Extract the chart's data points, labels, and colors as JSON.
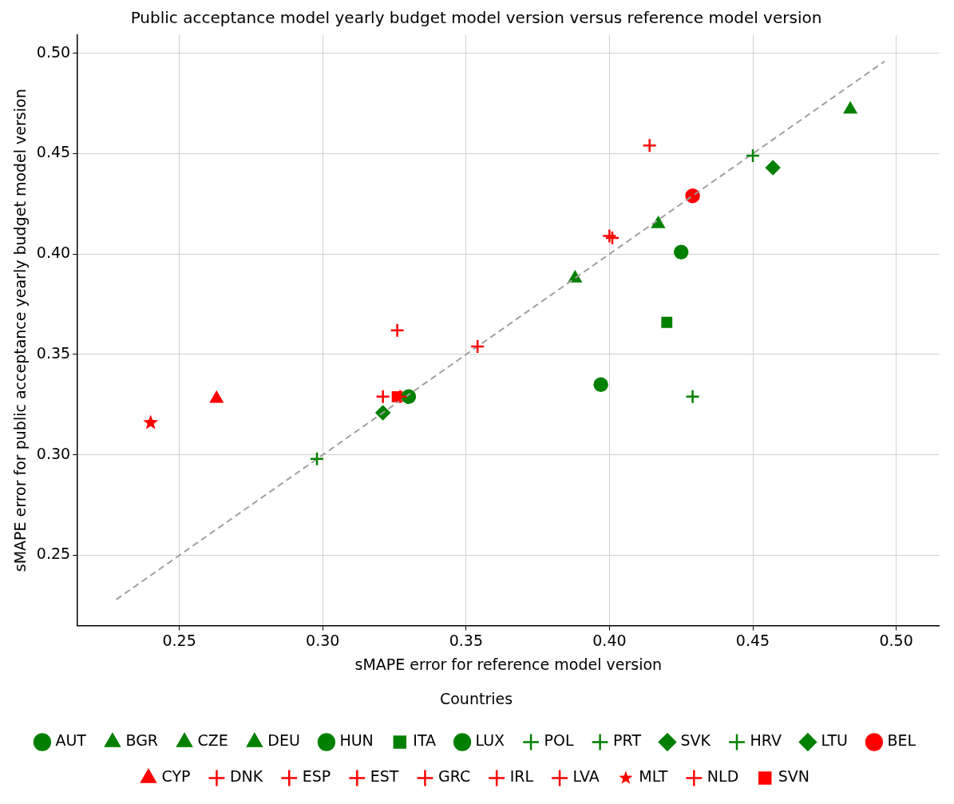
{
  "chart_data": {
    "type": "scatter",
    "title": "Public acceptance model yearly budget model version versus reference model version",
    "xlabel": "sMAPE error for reference model version",
    "ylabel": "sMAPE error for public acceptance yearly budget model version",
    "legend_title": "Countries",
    "legend": "bottom",
    "grid": true,
    "xlim": [
      0.2145,
      0.515
    ],
    "xticks": [
      0.25,
      {
        "value": 0.3,
        "label": "0.30"
      },
      0.35,
      {
        "value": 0.4,
        "label": "0.40"
      },
      0.45,
      {
        "value": 0.5,
        "label": "0.50"
      }
    ],
    "ylim": [
      0.215,
      0.509
    ],
    "yticks": [
      0.25,
      {
        "value": 0.3,
        "label": "0.30"
      },
      0.35,
      {
        "value": 0.4,
        "label": "0.40"
      },
      0.45,
      {
        "value": 0.5,
        "label": "0.50"
      }
    ],
    "series": [
      {
        "type": "line",
        "color": "#a0a0a0",
        "line_style": "dashed",
        "marker": "none",
        "x": [
          0.228,
          0.496
        ],
        "values": [
          0.228,
          0.496
        ]
      },
      {
        "name": "AUT",
        "color": "#008000",
        "marker": "circle",
        "x": [
          0.397
        ],
        "values": [
          0.335
        ]
      },
      {
        "name": "BGR",
        "color": "#008000",
        "marker": "triangle",
        "x": [
          0.388
        ],
        "values": [
          0.388
        ]
      },
      {
        "name": "CZE",
        "color": "#008000",
        "marker": "triangle",
        "x": [
          0.484
        ],
        "values": [
          0.472
        ]
      },
      {
        "name": "DEU",
        "color": "#008000",
        "marker": "triangle",
        "x": [
          0.417
        ],
        "values": [
          0.415
        ]
      },
      {
        "name": "HUN",
        "color": "#008000",
        "marker": "circle",
        "x": [
          0.33
        ],
        "values": [
          0.329
        ]
      },
      {
        "name": "ITA",
        "color": "#008000",
        "marker": "square",
        "x": [
          0.42
        ],
        "values": [
          0.366
        ]
      },
      {
        "name": "LUX",
        "color": "#008000",
        "marker": "circle",
        "x": [
          0.425
        ],
        "values": [
          0.401
        ]
      },
      {
        "name": "POL",
        "color": "#008000",
        "marker": "cross",
        "x": [
          0.45
        ],
        "values": [
          0.449
        ]
      },
      {
        "name": "PRT",
        "color": "#008000",
        "marker": "cross",
        "x": [
          0.429
        ],
        "values": [
          0.329
        ]
      },
      {
        "name": "SVK",
        "color": "#008000",
        "marker": "diamond",
        "x": [
          0.321
        ],
        "values": [
          0.321
        ]
      },
      {
        "name": "HRV",
        "color": "#008000",
        "marker": "cross",
        "x": [
          0.298
        ],
        "values": [
          0.298
        ]
      },
      {
        "name": "LTU",
        "color": "#008000",
        "marker": "diamond",
        "x": [
          0.457
        ],
        "values": [
          0.443
        ]
      },
      {
        "name": "BEL",
        "color": "#ff0000",
        "marker": "circle",
        "x": [
          0.429
        ],
        "values": [
          0.429
        ]
      },
      {
        "name": "CYP",
        "color": "#ff0000",
        "marker": "triangle",
        "x": [
          0.263
        ],
        "values": [
          0.328
        ]
      },
      {
        "name": "DNK",
        "color": "#ff0000",
        "marker": "cross",
        "x": [
          0.4
        ],
        "values": [
          0.409
        ]
      },
      {
        "name": "ESP",
        "color": "#ff0000",
        "marker": "cross",
        "x": [
          0.401
        ],
        "values": [
          0.408
        ]
      },
      {
        "name": "EST",
        "color": "#ff0000",
        "marker": "cross",
        "x": [
          0.327
        ],
        "values": [
          0.329
        ]
      },
      {
        "name": "GRC",
        "color": "#ff0000",
        "marker": "cross",
        "x": [
          0.321
        ],
        "values": [
          0.329
        ]
      },
      {
        "name": "IRL",
        "color": "#ff0000",
        "marker": "cross",
        "x": [
          0.326
        ],
        "values": [
          0.362
        ]
      },
      {
        "name": "LVA",
        "color": "#ff0000",
        "marker": "cross",
        "x": [
          0.354
        ],
        "values": [
          0.354
        ]
      },
      {
        "name": "MLT",
        "color": "#ff0000",
        "marker": "star",
        "x": [
          0.24
        ],
        "values": [
          0.316
        ]
      },
      {
        "name": "NLD",
        "color": "#ff0000",
        "marker": "cross",
        "x": [
          0.414
        ],
        "values": [
          0.454
        ]
      },
      {
        "name": "SVN",
        "color": "#ff0000",
        "marker": "square",
        "x": [
          0.326
        ],
        "values": [
          0.329
        ]
      }
    ]
  }
}
